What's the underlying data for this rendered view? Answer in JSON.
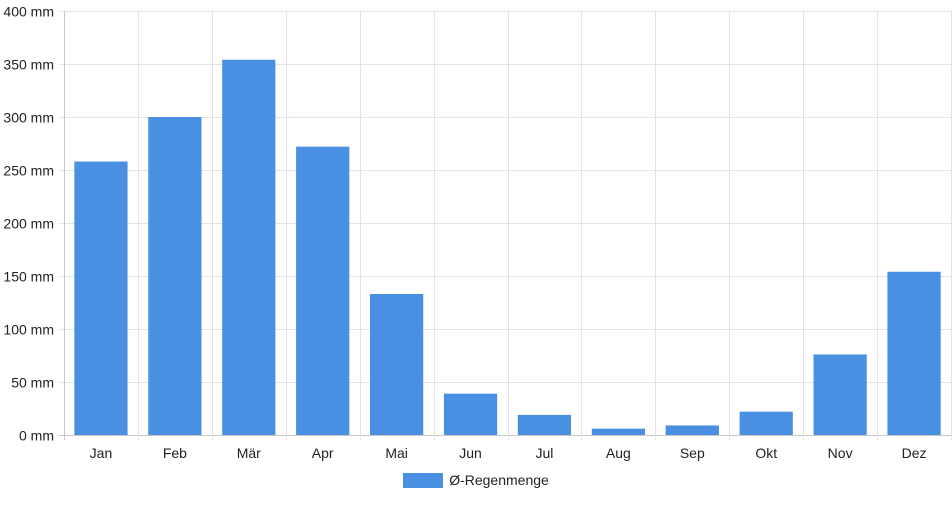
{
  "chart_data": {
    "type": "bar",
    "categories": [
      "Jan",
      "Feb",
      "Mär",
      "Apr",
      "Mai",
      "Jun",
      "Jul",
      "Aug",
      "Sep",
      "Okt",
      "Nov",
      "Dez"
    ],
    "series": [
      {
        "name": "Ø-Regenmenge",
        "values": [
          258,
          300,
          354,
          272,
          133,
          39,
          19,
          6,
          9,
          22,
          76,
          154
        ],
        "color": "#4a90e2"
      }
    ],
    "ylim": [
      0,
      400
    ],
    "yticks": [
      0,
      50,
      100,
      150,
      200,
      250,
      300,
      350,
      400
    ],
    "ytick_labels": [
      "0 mm",
      "50 mm",
      "100 mm",
      "150 mm",
      "200 mm",
      "250 mm",
      "300 mm",
      "350 mm",
      "400 mm"
    ],
    "grid": true,
    "legend_position": "bottom",
    "title": "",
    "xlabel": "",
    "ylabel": ""
  }
}
